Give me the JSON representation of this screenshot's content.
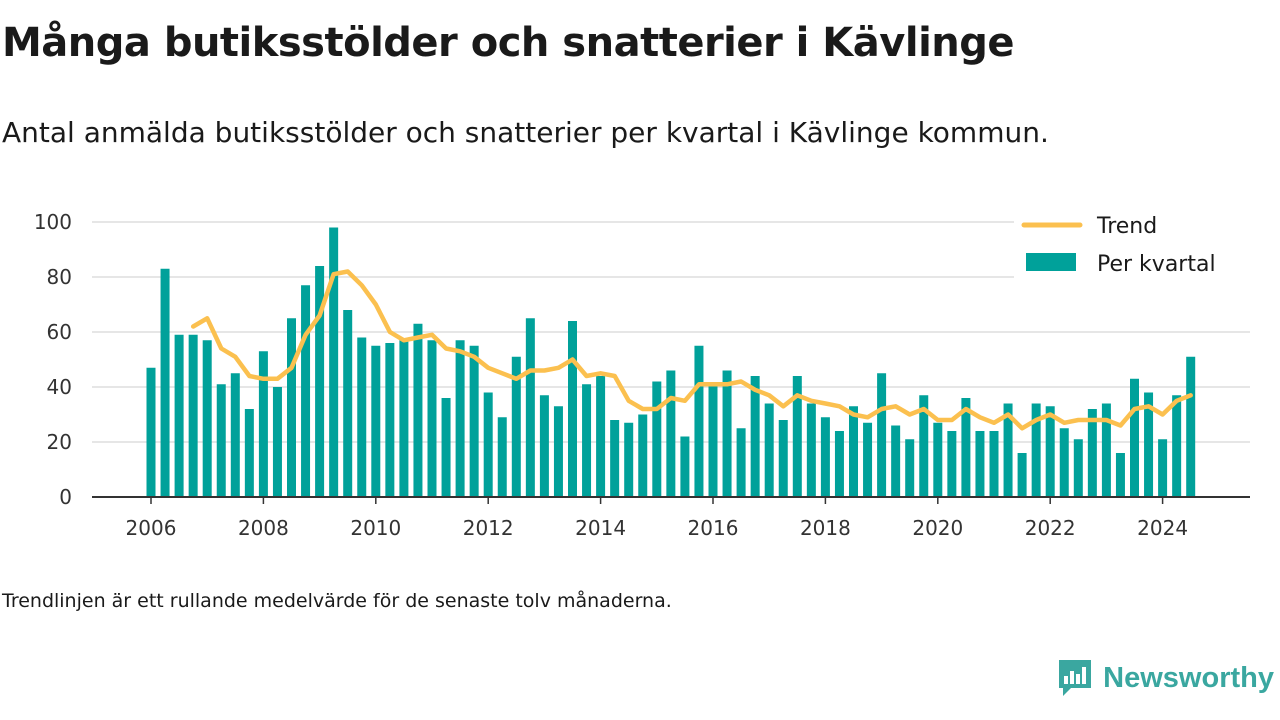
{
  "title": "Många butiksstölder och snatterier i Kävlinge",
  "subtitle": "Antal anmälda butiksstölder och snatterier per kvartal i Kävlinge kommun.",
  "note": "Trendlinjen är ett rullande medelvärde för de senaste tolv månaderna.",
  "brand": {
    "name": "Newsworthy",
    "icon": "newsworthy-logo-icon",
    "color": "#3aa7a0"
  },
  "colors": {
    "bar": "#00a19a",
    "trend": "#fbc04f",
    "grid": "#dddddd",
    "axis": "#333333"
  },
  "chart_data": {
    "type": "bar",
    "x_start": "2006 Q1",
    "period": "quarter",
    "xticks": [
      "2006",
      "2008",
      "2010",
      "2012",
      "2014",
      "2016",
      "2018",
      "2020",
      "2022",
      "2024"
    ],
    "yticks": [
      0,
      20,
      40,
      60,
      80,
      100
    ],
    "ylim": [
      0,
      100
    ],
    "grid": true,
    "legend_position": "top-right",
    "series": [
      {
        "name": "Per kvartal",
        "type": "bar",
        "values": [
          47,
          83,
          59,
          59,
          57,
          41,
          45,
          32,
          53,
          40,
          65,
          77,
          84,
          98,
          68,
          58,
          55,
          56,
          57,
          63,
          57,
          36,
          57,
          55,
          38,
          29,
          51,
          65,
          37,
          33,
          64,
          41,
          44,
          28,
          27,
          30,
          42,
          46,
          22,
          55,
          41,
          46,
          25,
          44,
          34,
          28,
          44,
          34,
          29,
          24,
          33,
          27,
          45,
          26,
          21,
          37,
          27,
          24,
          36,
          24,
          24,
          34,
          16,
          34,
          33,
          25,
          21,
          32,
          34,
          16,
          43,
          38,
          21,
          37,
          51
        ]
      },
      {
        "name": "Trend",
        "type": "line",
        "values": [
          null,
          null,
          null,
          62,
          65,
          54,
          51,
          44,
          43,
          43,
          47,
          59,
          66,
          81,
          82,
          77,
          70,
          60,
          57,
          58,
          59,
          54,
          53,
          51,
          47,
          45,
          43,
          46,
          46,
          47,
          50,
          44,
          45,
          44,
          35,
          32,
          32,
          36,
          35,
          41,
          41,
          41,
          42,
          39,
          37,
          33,
          37,
          35,
          34,
          33,
          30,
          29,
          32,
          33,
          30,
          32,
          28,
          28,
          32,
          29,
          27,
          30,
          25,
          28,
          30,
          27,
          28,
          28,
          28,
          26,
          32,
          33,
          30,
          35,
          37
        ]
      }
    ]
  }
}
